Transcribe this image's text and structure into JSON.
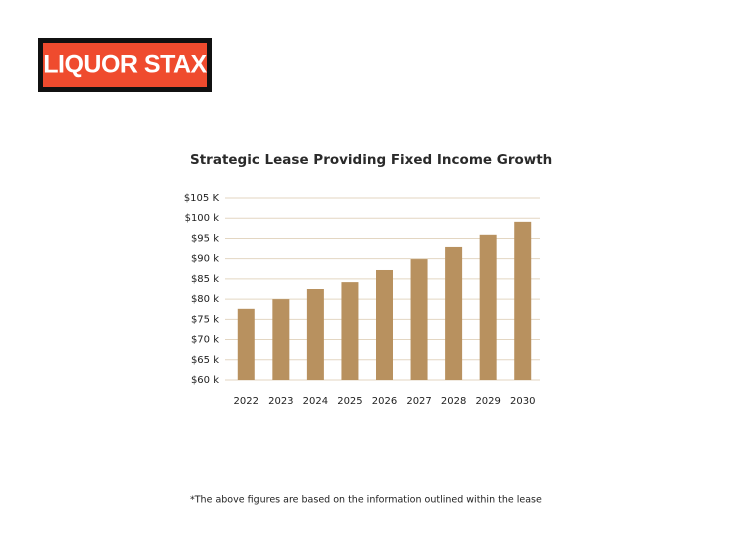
{
  "logo": "LIQUOR STAX",
  "chart_data": {
    "type": "bar",
    "title": "Strategic Lease Providing Fixed Income Growth",
    "categories": [
      "2022",
      "2023",
      "2024",
      "2025",
      "2026",
      "2027",
      "2028",
      "2029",
      "2030"
    ],
    "values": [
      77.6,
      80.0,
      82.5,
      84.2,
      87.2,
      89.9,
      92.9,
      95.9,
      99.1
    ],
    "color": "#b8915f",
    "ylim": [
      60,
      105
    ],
    "yticks": [
      {
        "value": 60,
        "label": "$60 k"
      },
      {
        "value": 65,
        "label": "$65 k"
      },
      {
        "value": 70,
        "label": "$70 k"
      },
      {
        "value": 75,
        "label": "$75 k"
      },
      {
        "value": 80,
        "label": "$80 k"
      },
      {
        "value": 85,
        "label": "$85 k"
      },
      {
        "value": 90,
        "label": "$90 k"
      },
      {
        "value": 95,
        "label": "$95 k"
      },
      {
        "value": 100,
        "label": "$100 k"
      },
      {
        "value": 105,
        "label": "$105 K"
      }
    ],
    "grid": true
  },
  "footnote": "*The above figures are based on the information outlined within the lease"
}
